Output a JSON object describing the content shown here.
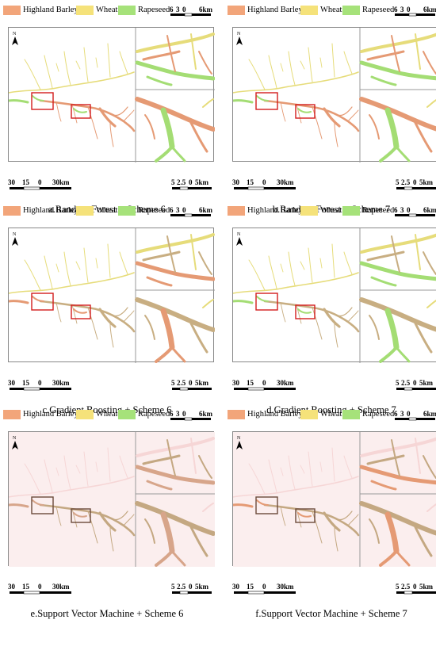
{
  "legend": {
    "items": [
      {
        "label": "Highland Barley",
        "color": "#f2a57a"
      },
      {
        "label": "Wheat",
        "color": "#f5e27a"
      },
      {
        "label": "Rapeseed",
        "color": "#a6e27a"
      }
    ]
  },
  "inset_scale": {
    "ticks": [
      "6",
      "3",
      "0",
      "6km"
    ]
  },
  "main_scale": {
    "ticks": [
      "30",
      "15",
      "0",
      "30km"
    ]
  },
  "zoom_scale": {
    "ticks": [
      "5",
      "2.5",
      "0",
      "5km"
    ]
  },
  "north_label": "N",
  "panels": [
    {
      "caption": "a.Random Forest + Scheme 6",
      "colors": {
        "main": "#e59a74",
        "secondary": "#a4dd74",
        "tertiary": "#e6dc7a",
        "box": "#d21d1d"
      }
    },
    {
      "caption": "b.Random Forest + Scheme 7",
      "colors": {
        "main": "#e59a74",
        "secondary": "#a4dd74",
        "tertiary": "#e6dc7a",
        "box": "#d21d1d"
      }
    },
    {
      "caption": "c.Gradient Boosting + Scheme 6",
      "colors": {
        "main": "#c8ae82",
        "secondary": "#e59a74",
        "tertiary": "#e6dc7a",
        "box": "#d21d1d"
      }
    },
    {
      "caption": "d.Gradient Boosting + Scheme 7",
      "colors": {
        "main": "#c8ae82",
        "secondary": "#a4dd74",
        "tertiary": "#e6dc7a",
        "box": "#d21d1d"
      }
    },
    {
      "caption": "e.Support Vector Machine + Scheme 6",
      "colors": {
        "main": "#c4a882",
        "secondary": "#d7a58a",
        "tertiary": "#f6d6d6",
        "box": "#6b4a3a"
      }
    },
    {
      "caption": "f.Support Vector Machine + Scheme 7",
      "colors": {
        "main": "#c4a882",
        "secondary": "#e59a74",
        "tertiary": "#f6d6d6",
        "box": "#6b4a3a"
      }
    }
  ]
}
